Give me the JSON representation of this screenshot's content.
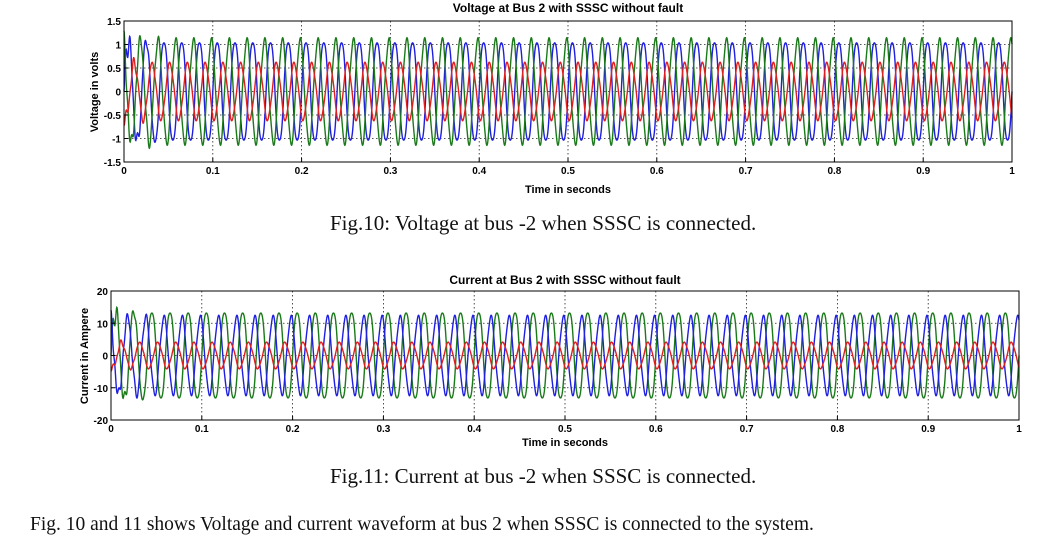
{
  "chart_data": [
    {
      "type": "line",
      "title": "Voltage at Bus 2 with SSSC without fault",
      "xlabel": "Time in seconds",
      "ylabel": "Voltage in volts",
      "xlim": [
        0,
        1
      ],
      "ylim": [
        -1.5,
        1.5
      ],
      "xticks": [
        "0",
        "0.1",
        "0.2",
        "0.3",
        "0.4",
        "0.5",
        "0.6",
        "0.7",
        "0.8",
        "0.9",
        "1"
      ],
      "yticks": [
        "1.5",
        "1",
        "0.5",
        "0",
        "-0.5",
        "-1",
        "-1.5"
      ],
      "grid": true,
      "frequency_hz": 50,
      "series": [
        {
          "color": "#1f1fe0",
          "amplitude": 1.1,
          "phase_deg": 0
        },
        {
          "color": "#1a7a1a",
          "amplitude": 1.1,
          "phase_deg": 120
        },
        {
          "color": "#e01f1f",
          "amplitude": 0.6,
          "phase_deg": 240
        }
      ]
    },
    {
      "type": "line",
      "title": "Current at Bus 2 with SSSC without fault",
      "xlabel": "Time in seconds",
      "ylabel": "Current in Ampere",
      "xlim": [
        0,
        1
      ],
      "ylim": [
        -20,
        20
      ],
      "xticks": [
        "0",
        "0.1",
        "0.2",
        "0.3",
        "0.4",
        "0.5",
        "0.6",
        "0.7",
        "0.8",
        "0.9",
        "1"
      ],
      "yticks": [
        "20",
        "10",
        "0",
        "-10",
        "-20"
      ],
      "grid": true,
      "frequency_hz": 50,
      "series": [
        {
          "color": "#1a7a1a",
          "amplitude": 14,
          "phase_deg": 0
        },
        {
          "color": "#1f1fe0",
          "amplitude": 12,
          "phase_deg": 120
        },
        {
          "color": "#e01f1f",
          "amplitude": 4,
          "phase_deg": 240
        }
      ]
    }
  ],
  "captions": {
    "fig10": "Fig.10: Voltage at bus -2 when SSSC is connected.",
    "fig11": "Fig.11: Current at bus -2 when SSSC is connected."
  },
  "body_text": "Fig. 10 and 11 shows Voltage and current waveform at bus 2 when SSSC is connected to the system."
}
